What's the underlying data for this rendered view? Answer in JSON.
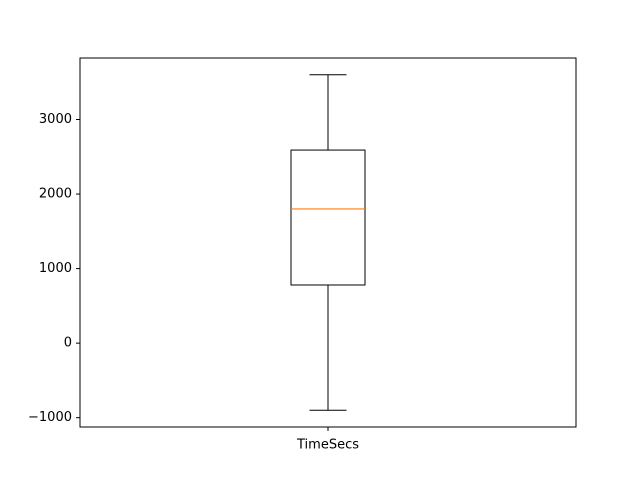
{
  "chart_data": {
    "type": "box",
    "categories": [
      "TimeSecs"
    ],
    "boxes": [
      {
        "name": "TimeSecs",
        "whisker_low": -900,
        "q1": 780,
        "median": 1800,
        "q3": 2590,
        "whisker_high": 3600
      }
    ],
    "yticks": [
      -1000,
      0,
      1000,
      2000,
      3000
    ],
    "ylim": [
      -1125,
      3825
    ],
    "title": "",
    "xlabel": "",
    "ylabel": "",
    "grid": false,
    "colors": {
      "box": "#000000",
      "median": "#ff7f0e",
      "axes": "#000000",
      "background": "#ffffff"
    }
  }
}
